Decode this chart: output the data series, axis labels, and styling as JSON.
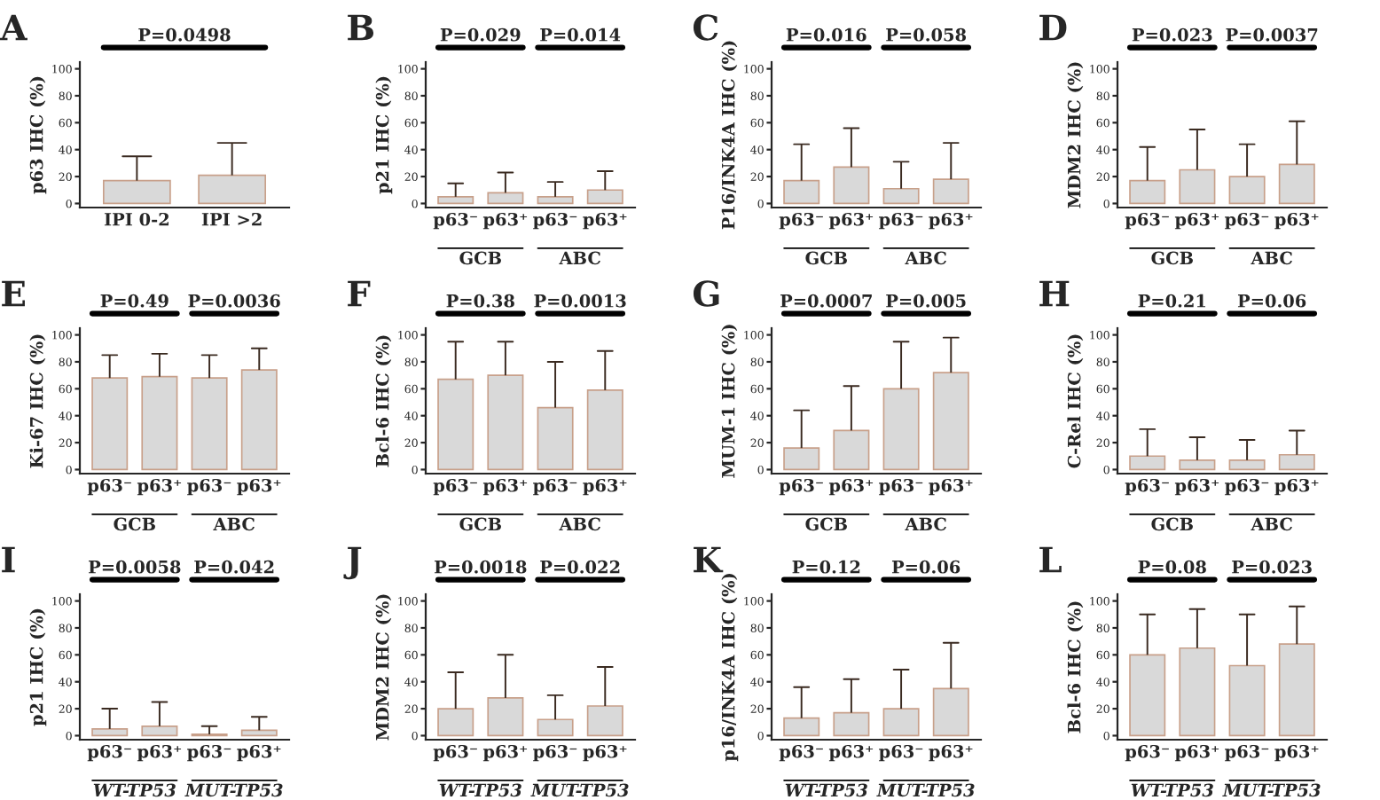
{
  "chart_data": [
    {
      "type": "bar",
      "title": "A",
      "ylabel": "p63 IHC (%)",
      "categories": [
        "IPI 0-2",
        "IPI >2"
      ],
      "values": [
        17,
        21
      ],
      "errors": [
        [
          17,
          35
        ],
        [
          21,
          45
        ]
      ],
      "color": "#d9d9d9",
      "ylim": [
        -3,
        105
      ],
      "yticks": [
        0,
        20,
        40,
        60,
        80,
        100
      ],
      "annotations": [
        "P=0.0498"
      ]
    },
    {
      "type": "bar",
      "title": "B",
      "ylabel": "p21 IHC (%)",
      "categories": [
        "p63⁻",
        "p63⁺",
        "p63⁻",
        "p63⁺"
      ],
      "values": [
        5,
        8,
        5,
        10
      ],
      "errors": [
        [
          5,
          15
        ],
        [
          8,
          23
        ],
        [
          5,
          16
        ],
        [
          10,
          24
        ]
      ],
      "color": "#d9d9d9",
      "ylim": [
        -3,
        105
      ],
      "yticks": [
        0,
        20,
        40,
        60,
        80,
        100
      ],
      "annotations": [
        "P=0.029",
        "P=0.014",
        "GCB",
        "ABC"
      ]
    },
    {
      "type": "bar",
      "title": "C",
      "ylabel": "P16/INK4A IHC (%)",
      "categories": [
        "p63⁻",
        "p63⁺",
        "p63⁻",
        "p63⁺"
      ],
      "values": [
        17,
        27,
        11,
        18
      ],
      "errors": [
        [
          17,
          44
        ],
        [
          27,
          56
        ],
        [
          11,
          31
        ],
        [
          18,
          45
        ]
      ],
      "color": "#d9d9d9",
      "ylim": [
        -3,
        105
      ],
      "yticks": [
        0,
        20,
        40,
        60,
        80,
        100
      ],
      "annotations": [
        "P=0.016",
        "P=0.058",
        "GCB",
        "ABC"
      ]
    },
    {
      "type": "bar",
      "title": "D",
      "ylabel": "MDM2 IHC (%)",
      "categories": [
        "p63⁻",
        "p63⁺",
        "p63⁻",
        "p63⁺"
      ],
      "values": [
        17,
        25,
        20,
        29
      ],
      "errors": [
        [
          17,
          42
        ],
        [
          25,
          55
        ],
        [
          20,
          44
        ],
        [
          29,
          61
        ]
      ],
      "color": "#d9d9d9",
      "ylim": [
        -3,
        105
      ],
      "yticks": [
        0,
        20,
        40,
        60,
        80,
        100
      ],
      "annotations": [
        "P=0.023",
        "P=0.0037",
        "GCB",
        "ABC"
      ]
    },
    {
      "type": "bar",
      "title": "E",
      "ylabel": "Ki-67 IHC (%)",
      "categories": [
        "p63⁻",
        "p63⁺",
        "p63⁻",
        "p63⁺"
      ],
      "values": [
        68,
        69,
        68,
        74
      ],
      "errors": [
        [
          68,
          85
        ],
        [
          69,
          86
        ],
        [
          68,
          85
        ],
        [
          74,
          90
        ]
      ],
      "color": "#d9d9d9",
      "ylim": [
        -3,
        105
      ],
      "yticks": [
        0,
        20,
        40,
        60,
        80,
        100
      ],
      "annotations": [
        "P=0.49",
        "P=0.0036",
        "GCB",
        "ABC"
      ]
    },
    {
      "type": "bar",
      "title": "F",
      "ylabel": "Bcl-6 IHC (%)",
      "categories": [
        "p63⁻",
        "p63⁺",
        "p63⁻",
        "p63⁺"
      ],
      "values": [
        67,
        70,
        46,
        59
      ],
      "errors": [
        [
          67,
          95
        ],
        [
          70,
          95
        ],
        [
          46,
          80
        ],
        [
          59,
          88
        ]
      ],
      "color": "#d9d9d9",
      "ylim": [
        -3,
        105
      ],
      "yticks": [
        0,
        20,
        40,
        60,
        80,
        100
      ],
      "annotations": [
        "P=0.38",
        "P=0.0013",
        "GCB",
        "ABC"
      ]
    },
    {
      "type": "bar",
      "title": "G",
      "ylabel": "MUM-1 IHC (%)",
      "categories": [
        "p63⁻",
        "p63⁺",
        "p63⁻",
        "p63⁺"
      ],
      "values": [
        16,
        29,
        60,
        72
      ],
      "errors": [
        [
          16,
          44
        ],
        [
          29,
          62
        ],
        [
          60,
          95
        ],
        [
          72,
          98
        ]
      ],
      "color": "#d9d9d9",
      "ylim": [
        -3,
        105
      ],
      "yticks": [
        0,
        20,
        40,
        60,
        80,
        100
      ],
      "annotations": [
        "P=0.0007",
        "P=0.005",
        "GCB",
        "ABC"
      ]
    },
    {
      "type": "bar",
      "title": "H",
      "ylabel": "C-Rel IHC (%)",
      "categories": [
        "p63⁻",
        "p63⁺",
        "p63⁻",
        "p63⁺"
      ],
      "values": [
        10,
        7,
        7,
        11
      ],
      "errors": [
        [
          10,
          30
        ],
        [
          7,
          24
        ],
        [
          7,
          22
        ],
        [
          11,
          29
        ]
      ],
      "color": "#d9d9d9",
      "ylim": [
        -3,
        105
      ],
      "yticks": [
        0,
        20,
        40,
        60,
        80,
        100
      ],
      "annotations": [
        "P=0.21",
        "P=0.06",
        "GCB",
        "ABC"
      ]
    },
    {
      "type": "bar",
      "title": "I",
      "ylabel": "p21 IHC (%)",
      "categories": [
        "p63⁻",
        "p63⁺",
        "p63⁻",
        "p63⁺"
      ],
      "values": [
        5,
        7,
        1,
        4
      ],
      "errors": [
        [
          5,
          20
        ],
        [
          7,
          25
        ],
        [
          1,
          7
        ],
        [
          4,
          14
        ]
      ],
      "color": "#d9d9d9",
      "ylim": [
        -3,
        105
      ],
      "yticks": [
        0,
        20,
        40,
        60,
        80,
        100
      ],
      "annotations": [
        "P=0.0058",
        "P=0.042",
        "WT-TP53",
        "MUT-TP53"
      ]
    },
    {
      "type": "bar",
      "title": "J",
      "ylabel": "MDM2 IHC (%)",
      "categories": [
        "p63⁻",
        "p63⁺",
        "p63⁻",
        "p63⁺"
      ],
      "values": [
        20,
        28,
        12,
        22
      ],
      "errors": [
        [
          20,
          47
        ],
        [
          28,
          60
        ],
        [
          12,
          30
        ],
        [
          22,
          51
        ]
      ],
      "color": "#d9d9d9",
      "ylim": [
        -3,
        105
      ],
      "yticks": [
        0,
        20,
        40,
        60,
        80,
        100
      ],
      "annotations": [
        "P=0.0018",
        "P=0.022",
        "WT-TP53",
        "MUT-TP53"
      ]
    },
    {
      "type": "bar",
      "title": "K",
      "ylabel": "p16/INK4A IHC (%)",
      "categories": [
        "p63⁻",
        "p63⁺",
        "p63⁻",
        "p63⁺"
      ],
      "values": [
        13,
        17,
        20,
        35
      ],
      "errors": [
        [
          13,
          36
        ],
        [
          17,
          42
        ],
        [
          20,
          49
        ],
        [
          35,
          69
        ]
      ],
      "color": "#d9d9d9",
      "ylim": [
        -3,
        105
      ],
      "yticks": [
        0,
        20,
        40,
        60,
        80,
        100
      ],
      "annotations": [
        "P=0.12",
        "P=0.06",
        "WT-TP53",
        "MUT-TP53"
      ]
    },
    {
      "type": "bar",
      "title": "L",
      "ylabel": "Bcl-6 IHC (%)",
      "categories": [
        "p63⁻",
        "p63⁺",
        "p63⁻",
        "p63⁺"
      ],
      "values": [
        60,
        65,
        52,
        68
      ],
      "errors": [
        [
          60,
          90
        ],
        [
          65,
          94
        ],
        [
          52,
          90
        ],
        [
          68,
          96
        ]
      ],
      "color": "#d9d9d9",
      "ylim": [
        -3,
        105
      ],
      "yticks": [
        0,
        20,
        40,
        60,
        80,
        100
      ],
      "annotations": [
        "P=0.08",
        "P=0.023",
        "WT-TP53",
        "MUT-TP53"
      ]
    }
  ]
}
